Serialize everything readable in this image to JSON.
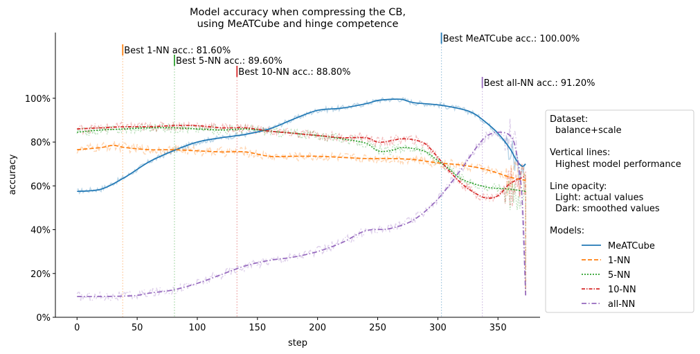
{
  "chart_data": {
    "type": "line",
    "title_lines": [
      "Model accuracy when compressing the CB,",
      "using MeATCube and hinge competence"
    ],
    "xlabel": "step",
    "ylabel": "accuracy",
    "xlim": [
      -18,
      385
    ],
    "ylim": [
      0,
      1.3
    ],
    "xticks": [
      0,
      50,
      100,
      150,
      200,
      250,
      300,
      350
    ],
    "yticks": [
      {
        "value": 0,
        "label": "0%"
      },
      {
        "value": 0.2,
        "label": "20%"
      },
      {
        "value": 0.4,
        "label": "40%"
      },
      {
        "value": 0.6,
        "label": "60%"
      },
      {
        "value": 0.8,
        "label": "80%"
      },
      {
        "value": 1.0,
        "label": "100%"
      }
    ],
    "grid": false,
    "legend_position": "right",
    "legend_text": {
      "dataset_heading": "Dataset:",
      "dataset_value": "balance+scale",
      "vlines_heading": "Vertical lines:",
      "vlines_value": "Highest model performance",
      "opacity_heading": "Line opacity:",
      "opacity_light": "Light: actual values",
      "opacity_dark": "Dark: smoothed values",
      "models_heading": "Models:"
    },
    "series": [
      {
        "name": "MeATCube",
        "color": "#1f77b4",
        "dash": "solid",
        "x": [
          0,
          20,
          40,
          60,
          80,
          100,
          120,
          140,
          160,
          180,
          200,
          220,
          240,
          250,
          260,
          270,
          280,
          300,
          320,
          330,
          340,
          350,
          360,
          365,
          370,
          373
        ],
        "y": [
          0.575,
          0.585,
          0.64,
          0.71,
          0.76,
          0.8,
          0.82,
          0.835,
          0.86,
          0.905,
          0.945,
          0.955,
          0.975,
          0.99,
          0.995,
          0.995,
          0.98,
          0.97,
          0.95,
          0.93,
          0.89,
          0.84,
          0.77,
          0.72,
          0.69,
          0.7
        ],
        "best": {
          "step": 303,
          "label": "Best MeATCube acc.: 100.00%"
        }
      },
      {
        "name": "1-NN",
        "color": "#ff7f0e",
        "dash": "6,3",
        "x": [
          0,
          20,
          30,
          40,
          60,
          80,
          100,
          120,
          140,
          160,
          180,
          200,
          220,
          240,
          260,
          280,
          300,
          320,
          340,
          360,
          373
        ],
        "y": [
          0.765,
          0.775,
          0.785,
          0.775,
          0.765,
          0.765,
          0.76,
          0.755,
          0.755,
          0.735,
          0.735,
          0.735,
          0.73,
          0.725,
          0.725,
          0.72,
          0.705,
          0.695,
          0.675,
          0.64,
          0.625
        ],
        "best": {
          "step": 38,
          "label": "Best 1-NN acc.: 81.60%"
        }
      },
      {
        "name": "5-NN",
        "color": "#2ca02c",
        "dash": "2,2",
        "x": [
          0,
          20,
          40,
          60,
          80,
          100,
          120,
          140,
          160,
          180,
          200,
          220,
          240,
          250,
          260,
          270,
          280,
          290,
          300,
          310,
          320,
          340,
          360,
          373
        ],
        "y": [
          0.845,
          0.855,
          0.86,
          0.865,
          0.865,
          0.86,
          0.855,
          0.86,
          0.85,
          0.84,
          0.83,
          0.815,
          0.795,
          0.76,
          0.76,
          0.775,
          0.77,
          0.755,
          0.715,
          0.675,
          0.63,
          0.595,
          0.585,
          0.575
        ],
        "best": {
          "step": 81,
          "label": "Best 5-NN acc.: 89.60%"
        }
      },
      {
        "name": "10-NN",
        "color": "#d62728",
        "dash": "5,2,1.5,2",
        "x": [
          0,
          20,
          40,
          60,
          80,
          100,
          120,
          140,
          160,
          180,
          200,
          220,
          240,
          250,
          260,
          270,
          280,
          290,
          300,
          310,
          320,
          330,
          340,
          350,
          360,
          373
        ],
        "y": [
          0.86,
          0.865,
          0.87,
          0.87,
          0.875,
          0.875,
          0.865,
          0.865,
          0.85,
          0.84,
          0.83,
          0.82,
          0.82,
          0.8,
          0.805,
          0.815,
          0.81,
          0.79,
          0.73,
          0.665,
          0.61,
          0.57,
          0.545,
          0.555,
          0.61,
          0.645
        ],
        "best": {
          "step": 133,
          "label": "Best 10-NN acc.: 88.80%"
        }
      },
      {
        "name": "all-NN",
        "color": "#9467bd",
        "dash": "7,3,1.5,3",
        "x": [
          0,
          20,
          40,
          50,
          60,
          80,
          100,
          120,
          140,
          160,
          180,
          200,
          220,
          240,
          260,
          280,
          300,
          320,
          330,
          340,
          350,
          360,
          365,
          370,
          373
        ],
        "y": [
          0.095,
          0.095,
          0.097,
          0.1,
          0.11,
          0.125,
          0.155,
          0.195,
          0.235,
          0.26,
          0.275,
          0.3,
          0.34,
          0.395,
          0.405,
          0.445,
          0.54,
          0.68,
          0.76,
          0.825,
          0.845,
          0.83,
          0.76,
          0.55,
          0.1
        ],
        "best": {
          "step": 337,
          "label": "Best all-NN acc.: 91.20%"
        }
      }
    ]
  }
}
